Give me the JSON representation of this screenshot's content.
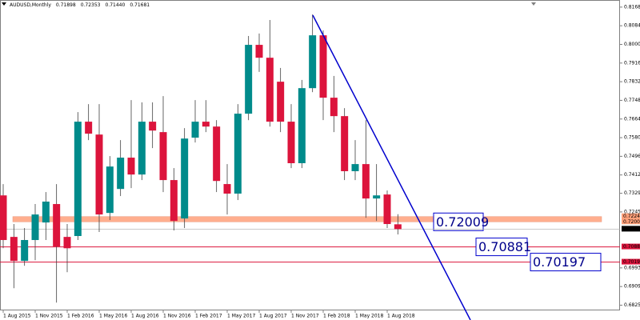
{
  "chart_data": {
    "type": "candlestick",
    "title": "AUDUSD,Monthly",
    "last_bar_labels": [
      "0.71898",
      "0.72353",
      "0.71440",
      "0.71681"
    ],
    "categories": [
      "1 Aug 2015",
      null,
      null,
      "1 Nov 2015",
      null,
      null,
      "1 Feb 2016",
      null,
      null,
      "1 May 2016",
      null,
      null,
      "1 Aug 2016",
      null,
      null,
      "1 Nov 2016",
      null,
      null,
      "1 Feb 2017",
      null,
      null,
      "1 May 2017",
      null,
      null,
      "1 Aug 2017",
      null,
      null,
      "1 Nov 2017",
      null,
      null,
      "1 Feb 2018",
      null,
      null,
      "1 May 2018",
      null,
      null,
      "1 Aug 2018",
      null
    ],
    "open": [
      0.732,
      0.7133,
      0.7025,
      0.7119,
      0.7198,
      0.7281,
      0.7133,
      0.7137,
      0.7652,
      0.7594,
      0.7241,
      0.7349,
      0.749,
      0.7414,
      0.7652,
      0.7605,
      0.7389,
      0.7216,
      0.758,
      0.7652,
      0.763,
      0.7371,
      0.7328,
      0.7688,
      0.7998,
      0.794,
      0.7832,
      0.7652,
      0.7465,
      0.7803,
      0.8041,
      0.776,
      0.7677,
      0.7429,
      0.7461,
      0.7306,
      0.7324,
      0.71898
    ],
    "high": [
      0.7371,
      0.7191,
      0.7173,
      0.7281,
      0.7335,
      0.7371,
      0.7191,
      0.7695,
      0.7731,
      0.7731,
      0.7497,
      0.7569,
      0.7749,
      0.7739,
      0.7739,
      0.7767,
      0.7443,
      0.7623,
      0.7749,
      0.7749,
      0.7659,
      0.7461,
      0.7731,
      0.8038,
      0.8049,
      0.811,
      0.7894,
      0.7731,
      0.784,
      0.8135,
      0.8063,
      0.7858,
      0.7713,
      0.7569,
      0.7659,
      0.7461,
      0.7342,
      0.72353
    ],
    "low": [
      0.7082,
      0.6902,
      0.7003,
      0.7028,
      0.7119,
      0.6837,
      0.6974,
      0.7119,
      0.7569,
      0.7155,
      0.7209,
      0.7317,
      0.7353,
      0.7389,
      0.7533,
      0.7335,
      0.7162,
      0.7173,
      0.7558,
      0.7605,
      0.7335,
      0.7234,
      0.7299,
      0.7659,
      0.7876,
      0.763,
      0.7605,
      0.7443,
      0.7443,
      0.7785,
      0.7659,
      0.7605,
      0.7389,
      0.7389,
      0.7219,
      0.7205,
      0.7173,
      0.7144
    ],
    "close": [
      0.7119,
      0.7025,
      0.7119,
      0.7234,
      0.7292,
      0.709,
      0.7082,
      0.7652,
      0.7598,
      0.7234,
      0.745,
      0.749,
      0.7414,
      0.7652,
      0.7612,
      0.7389,
      0.7205,
      0.7576,
      0.7652,
      0.763,
      0.7385,
      0.7328,
      0.7688,
      0.7998,
      0.794,
      0.7652,
      0.7652,
      0.7465,
      0.7803,
      0.8041,
      0.776,
      0.7677,
      0.7429,
      0.7461,
      0.7306,
      0.732,
      0.7191,
      0.71681
    ],
    "up_color": "#008b8b",
    "down_color": "#dc143c",
    "ylim": [
      0.6802,
      0.82
    ],
    "yticks": [
      {
        "value": 0.8168,
        "label": "0.81680"
      },
      {
        "value": 0.8084,
        "label": "0.80840"
      },
      {
        "value": 0.8,
        "label": "0.80000"
      },
      {
        "value": 0.7916,
        "label": "0.79160"
      },
      {
        "value": 0.7832,
        "label": "0.78320"
      },
      {
        "value": 0.7748,
        "label": "0.77480"
      },
      {
        "value": 0.7664,
        "label": "0.76640"
      },
      {
        "value": 0.758,
        "label": "0.75800"
      },
      {
        "value": 0.7496,
        "label": "0.74960"
      },
      {
        "value": 0.7412,
        "label": "0.74120"
      },
      0.73295,
      0.72455,
      0.69935,
      0.69095,
      0.68255
    ],
    "zone": {
      "levels": [
        0.72246,
        0.72009
      ],
      "color": "#ffa07a"
    },
    "levels": [
      {
        "value": 0.72009,
        "color": "#ffa07a"
      },
      {
        "value": 0.70881,
        "color": "#dc143c"
      },
      {
        "value": 0.70197,
        "color": "#dc143c"
      }
    ],
    "trendline_color": "#0000cd"
  }
}
